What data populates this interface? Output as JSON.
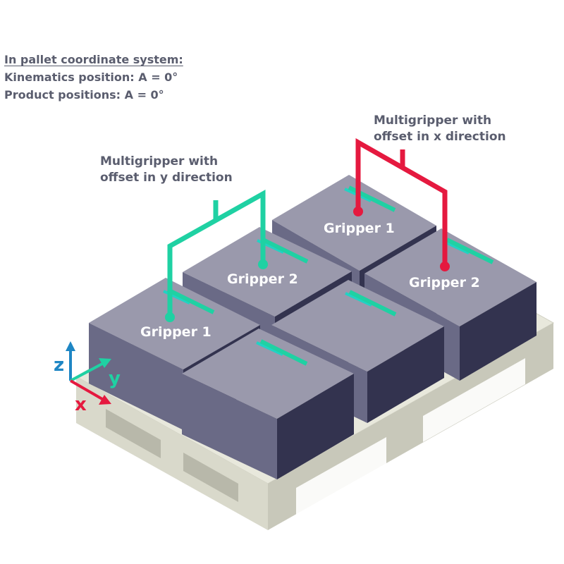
{
  "header": {
    "title": "In pallet coordinate system:",
    "kinematics": "Kinematics position: A = 0°",
    "products": "Product positions: A = 0°"
  },
  "multigripper_y": {
    "caption_line1": "Multigripper with",
    "caption_line2": "offset in y direction",
    "gripper1": "Gripper 1",
    "gripper2": "Gripper 2",
    "color": "#1fd1a3"
  },
  "multigripper_x": {
    "caption_line1": "Multigripper with",
    "caption_line2": "offset in x direction",
    "gripper1": "Gripper 1",
    "gripper2": "Gripper 2",
    "color": "#e5193f"
  },
  "axes": {
    "x": "x",
    "y": "y",
    "z": "z",
    "x_color": "#e5193f",
    "y_color": "#1fd1a3",
    "z_color": "#1e86c4"
  },
  "colors": {
    "box_top": "#9a99ac",
    "box_left": "#6a6a86",
    "box_right": "#33334f",
    "pallet": "#e8e8dc",
    "marker": "#22d2c4"
  }
}
